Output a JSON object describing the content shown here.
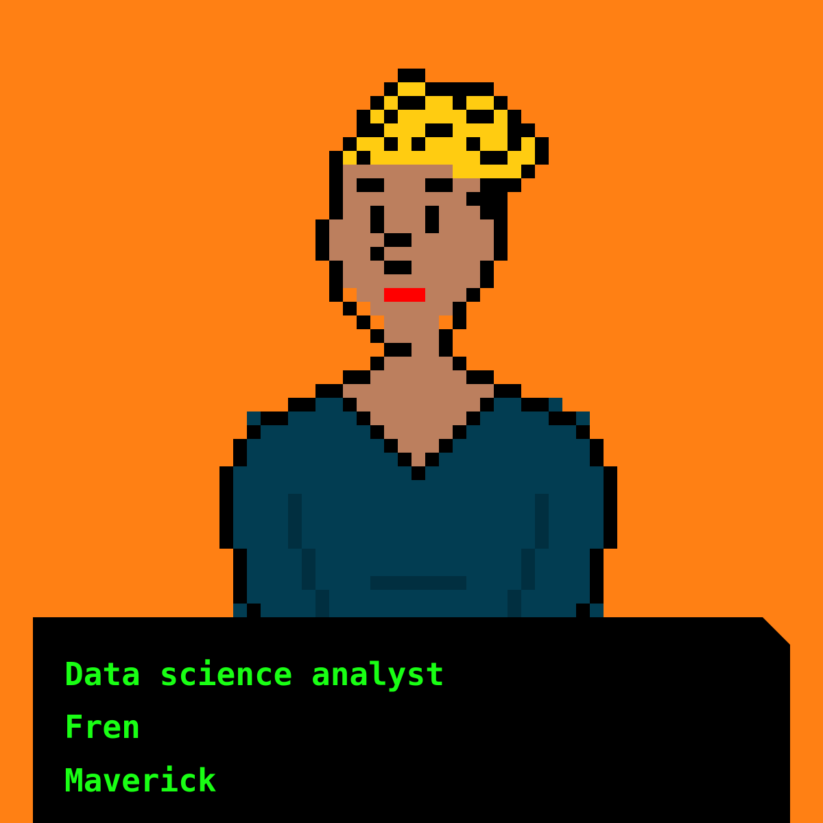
{
  "colors": {
    "background": "#FF8014",
    "outline": "#000000",
    "skin": "#BC7F5E",
    "hair": "#FFCC11",
    "lips": "#FF0000",
    "shirt": "#023D52",
    "shirt_shade": "#012F40",
    "panel": "#000000",
    "panel_text": "#19FF14"
  },
  "avatar": {
    "name": "pixel-avatar",
    "hair_style": "spiky blond",
    "clothing": "v-neck shirt"
  },
  "info": {
    "role": "Data science analyst",
    "tag": "Fren",
    "trait": "Maverick"
  }
}
